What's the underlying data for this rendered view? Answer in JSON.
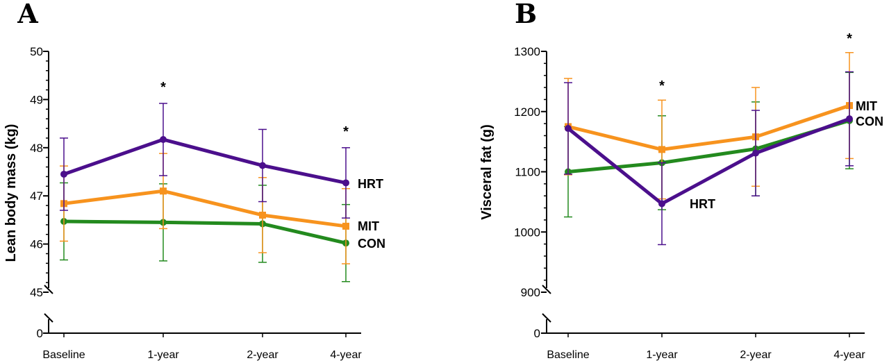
{
  "chart_data": [
    {
      "panel_label": "A",
      "type": "line",
      "ylabel": "Lean body mass (kg)",
      "categories": [
        "Baseline",
        "1-year",
        "2-year",
        "4-year"
      ],
      "ylim": [
        45,
        50
      ],
      "yticks": [
        45,
        46,
        47,
        48,
        49,
        50
      ],
      "axis_break": true,
      "zero_label": "0",
      "series": [
        {
          "name": "HRT",
          "color": "#4b0f8c",
          "marker": "circle",
          "values": [
            47.45,
            48.17,
            47.63,
            47.27
          ],
          "errors": [
            0.75,
            0.75,
            0.75,
            0.73
          ]
        },
        {
          "name": "MIT",
          "color": "#f7931e",
          "marker": "square",
          "values": [
            46.84,
            47.1,
            46.6,
            46.37
          ],
          "errors": [
            0.78,
            0.78,
            0.78,
            0.78
          ]
        },
        {
          "name": "CON",
          "color": "#238a1e",
          "marker": "circle",
          "values": [
            46.47,
            46.45,
            46.42,
            46.02
          ],
          "errors": [
            0.8,
            0.8,
            0.8,
            0.8
          ]
        }
      ],
      "annotations": [
        {
          "text": "*",
          "category": "1-year"
        },
        {
          "text": "*",
          "category": "4-year"
        }
      ]
    },
    {
      "panel_label": "B",
      "type": "line",
      "ylabel": "Visceral fat (g)",
      "categories": [
        "Baseline",
        "1-year",
        "2-year",
        "4-year"
      ],
      "ylim": [
        900,
        1300
      ],
      "yticks": [
        900,
        1000,
        1100,
        1200,
        1300
      ],
      "axis_break": true,
      "zero_label": "0",
      "series": [
        {
          "name": "HRT",
          "color": "#4b0f8c",
          "marker": "circle",
          "values": [
            1172,
            1047,
            1131,
            1188
          ],
          "errors": [
            76,
            68,
            71,
            78
          ]
        },
        {
          "name": "MIT",
          "color": "#f7931e",
          "marker": "square",
          "values": [
            1175,
            1137,
            1158,
            1210
          ],
          "errors": [
            80,
            82,
            82,
            88
          ]
        },
        {
          "name": "CON",
          "color": "#238a1e",
          "marker": "circle",
          "values": [
            1100,
            1115,
            1138,
            1185
          ],
          "errors": [
            75,
            78,
            78,
            80
          ]
        }
      ],
      "annotations": [
        {
          "text": "*",
          "category": "1-year"
        },
        {
          "text": "*",
          "category": "4-year"
        }
      ]
    }
  ]
}
